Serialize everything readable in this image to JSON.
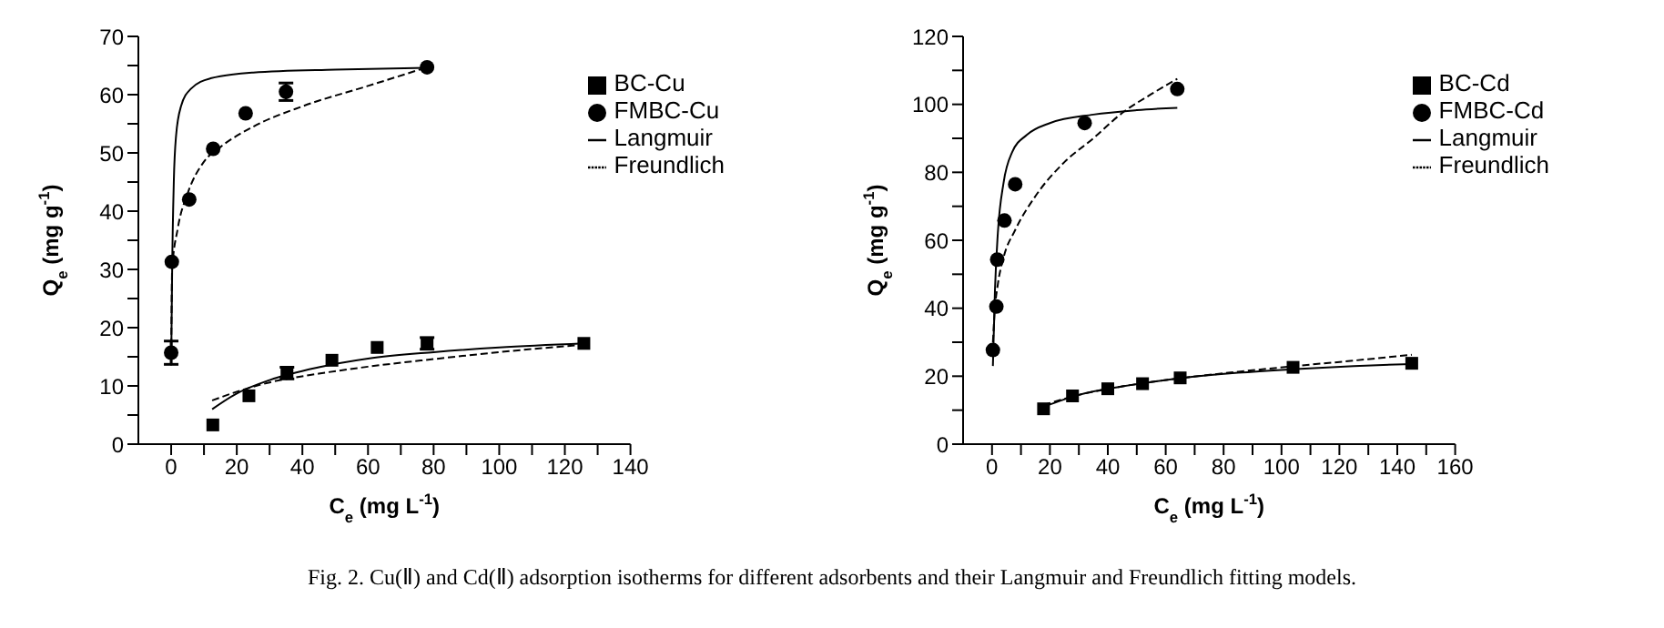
{
  "chart_data": [
    {
      "type": "scatter",
      "xlabel": "C$_{e}$ (mg L$^{-1}$)",
      "ylabel": "Q$_{e}$ (mg g$^{-1}$)",
      "xlim": [
        -10,
        140
      ],
      "ylim": [
        0,
        70
      ],
      "xticks": [
        0,
        {
          "value": 10,
          "label": null
        },
        20,
        {
          "value": 30,
          "label": null
        },
        40,
        {
          "value": 50,
          "label": null
        },
        60,
        {
          "value": 70,
          "label": null
        },
        80,
        {
          "value": 90,
          "label": null
        },
        100,
        {
          "value": 110,
          "label": null
        },
        120,
        {
          "value": 130,
          "label": null
        },
        140
      ],
      "yticks": [
        0,
        {
          "value": 5,
          "label": null
        },
        10,
        {
          "value": 15,
          "label": null
        },
        20,
        {
          "value": 25,
          "label": null
        },
        30,
        {
          "value": 35,
          "label": null
        },
        40,
        {
          "value": 45,
          "label": null
        },
        50,
        {
          "value": 55,
          "label": null
        },
        60,
        {
          "value": 65,
          "label": null
        },
        70
      ],
      "grid": false,
      "legend": "top right",
      "annotations": [
        "Fig. 2. Cu(Ⅱ) and Cd(Ⅱ) adsorption isotherms for different adsorbents and their Langmuir and Freundlich fitting models."
      ],
      "series": [
        {
          "name": "BC-Cu",
          "marker": "square",
          "color": "#000000",
          "x": [
            12.7,
            23.7,
            35.3,
            49,
            62.8,
            78,
            125.8
          ],
          "values": [
            3.3,
            8.3,
            12.2,
            14.4,
            16.6,
            17.3,
            17.3
          ],
          "errors": [
            null,
            null,
            1,
            null,
            null,
            1,
            null
          ]
        },
        {
          "name": "FMBC-Cu",
          "marker": "circle",
          "color": "#000000",
          "x": [
            0,
            0.2,
            5.5,
            12.8,
            22.7,
            35,
            78
          ],
          "values": [
            15.7,
            31.3,
            42,
            50.7,
            56.8,
            60.5,
            64.7
          ],
          "errors": [
            2,
            null,
            null,
            null,
            null,
            1.5,
            null
          ]
        },
        {
          "name": "Langmuir",
          "type": "line",
          "line_style": "solid",
          "color": "#000000",
          "x": [
            0,
            0.3,
            0.8,
            1.5,
            3,
            6,
            12,
            25,
            50,
            78
          ],
          "values": [
            13.5,
            30,
            45,
            53,
            58,
            61,
            62.8,
            63.8,
            64.3,
            64.6
          ]
        },
        {
          "name": "Freundlich",
          "type": "line",
          "line_style": "dashed",
          "color": "#000000",
          "x": [
            0,
            0.3,
            2,
            5,
            10,
            15,
            25,
            40,
            60,
            78
          ],
          "values": [
            15,
            30,
            37,
            43,
            48.5,
            51,
            54.5,
            58,
            61.5,
            64.7
          ]
        },
        {
          "type": "line",
          "line_style": "solid",
          "color": "#000000",
          "x": [
            12.5,
            20,
            30,
            45,
            60,
            80,
            100,
            126
          ],
          "values": [
            6,
            8.7,
            11,
            13.2,
            14.7,
            15.8,
            16.6,
            17.3
          ]
        },
        {
          "type": "line",
          "line_style": "dashed",
          "color": "#000000",
          "x": [
            12.5,
            20,
            30,
            45,
            60,
            80,
            100,
            126
          ],
          "values": [
            7.5,
            9,
            10.6,
            12.1,
            13.3,
            14.6,
            15.8,
            17.1
          ]
        }
      ]
    },
    {
      "type": "scatter",
      "xlabel": "C$_{e}$ (mg L$^{-1}$)",
      "ylabel": "Q$_{e}$ (mg g$^{-1}$)",
      "xlim": [
        -10,
        160
      ],
      "ylim": [
        0,
        120
      ],
      "xticks": [
        0,
        {
          "value": 10,
          "label": null
        },
        20,
        {
          "value": 30,
          "label": null
        },
        40,
        {
          "value": 50,
          "label": null
        },
        60,
        {
          "value": 70,
          "label": null
        },
        80,
        {
          "value": 90,
          "label": null
        },
        100,
        {
          "value": 110,
          "label": null
        },
        120,
        {
          "value": 130,
          "label": null
        },
        140,
        {
          "value": 150,
          "label": null
        },
        160
      ],
      "yticks": [
        0,
        {
          "value": 10,
          "label": null
        },
        20,
        {
          "value": 30,
          "label": null
        },
        40,
        {
          "value": 50,
          "label": null
        },
        60,
        {
          "value": 70,
          "label": null
        },
        80,
        {
          "value": 90,
          "label": null
        },
        100,
        {
          "value": 110,
          "label": null
        },
        120
      ],
      "grid": false,
      "legend": "top right",
      "series": [
        {
          "name": "BC-Cd",
          "marker": "square",
          "color": "#000000",
          "x": [
            17.8,
            27.8,
            40,
            52,
            65,
            104,
            145
          ],
          "values": [
            10.4,
            14.2,
            16.3,
            17.8,
            19.5,
            22.6,
            23.8
          ]
        },
        {
          "name": "FMBC-Cd",
          "marker": "circle",
          "color": "#000000",
          "x": [
            0.3,
            1.5,
            1.8,
            4.3,
            8,
            32,
            64
          ],
          "values": [
            27.7,
            40.5,
            54.3,
            65.8,
            76.5,
            94.5,
            104.5
          ]
        },
        {
          "name": "Langmuir",
          "type": "line",
          "line_style": "solid",
          "color": "#000000",
          "x": [
            0.3,
            1,
            2,
            4,
            7,
            12,
            20,
            35,
            50,
            64
          ],
          "values": [
            23,
            45,
            62,
            77,
            86,
            91,
            94.5,
            97,
            98.3,
            99
          ]
        },
        {
          "name": "Freundlich",
          "type": "line",
          "line_style": "dashed",
          "color": "#000000",
          "x": [
            0.3,
            1,
            2,
            4,
            8,
            15,
            25,
            35,
            45,
            55,
            64
          ],
          "values": [
            30,
            40,
            47,
            55,
            63,
            73,
            83,
            90,
            97.5,
            103,
            107.5
          ]
        },
        {
          "type": "line",
          "line_style": "solid",
          "color": "#000000",
          "x": [
            17.8,
            30,
            45,
            65,
            85,
            105,
            125,
            145
          ],
          "values": [
            11,
            14.5,
            17,
            19.4,
            21,
            22.1,
            23,
            23.6
          ]
        },
        {
          "type": "line",
          "line_style": "dashed",
          "color": "#000000",
          "x": [
            17.8,
            30,
            45,
            65,
            85,
            105,
            125,
            145
          ],
          "values": [
            11.5,
            14.5,
            17,
            19.4,
            21.3,
            23,
            24.6,
            26.3
          ]
        }
      ]
    }
  ]
}
